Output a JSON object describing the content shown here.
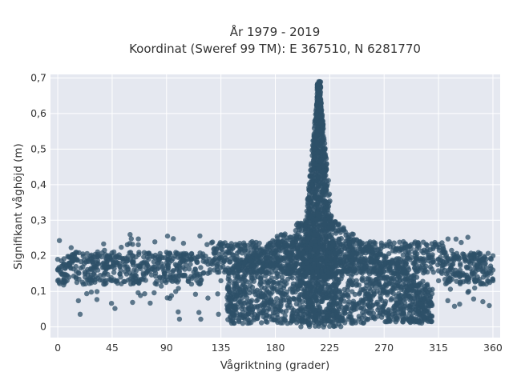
{
  "chart_data": {
    "type": "scatter",
    "title_line1": "År 1979 - 2019",
    "title_line2": "Koordinat (Sweref 99 TM): E 367510, N 6281770",
    "xlabel": "Vågriktning (grader)",
    "ylabel": "Signifikant våghöjd (m)",
    "xlim": [
      -6,
      366
    ],
    "ylim": [
      -0.03,
      0.71
    ],
    "x_ticks": [
      0,
      45,
      90,
      135,
      180,
      225,
      270,
      315,
      360
    ],
    "x_tick_labels": [
      "0",
      "45",
      "90",
      "135",
      "180",
      "225",
      "270",
      "315",
      "360"
    ],
    "y_ticks": [
      0,
      0.1,
      0.2,
      0.3,
      0.4,
      0.5,
      0.6,
      0.7
    ],
    "y_tick_labels": [
      "0",
      "0,1",
      "0,2",
      "0,3",
      "0,4",
      "0,5",
      "0,6",
      "0,7"
    ],
    "grid": true,
    "marker_color": "#2e5068",
    "plot_background": "#e5e8f0",
    "series": [
      {
        "points_note": "dense cloud; outer envelope of observations",
        "x": [
          0,
          0,
          0,
          15,
          15,
          15,
          45,
          45,
          45,
          90,
          90,
          90,
          135,
          135,
          135,
          160,
          170,
          180,
          190,
          200,
          205,
          210,
          212,
          214,
          216,
          218,
          220,
          222,
          225,
          230,
          240,
          250,
          270,
          270,
          315,
          315,
          360,
          360,
          360
        ],
        "y": [
          0.13,
          0.16,
          0.19,
          0.14,
          0.17,
          0.21,
          0.13,
          0.17,
          0.2,
          0.14,
          0.18,
          0.21,
          0.13,
          0.19,
          0.23,
          0.06,
          0.04,
          0.02,
          0.01,
          0.2,
          0.3,
          0.4,
          0.5,
          0.6,
          0.69,
          0.55,
          0.42,
          0.35,
          0.3,
          0.27,
          0.25,
          0.24,
          0.14,
          0.2,
          0.13,
          0.19,
          0.13,
          0.16,
          0.2
        ]
      }
    ]
  }
}
